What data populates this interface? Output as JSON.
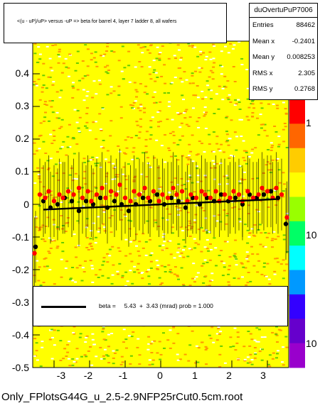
{
  "chart_data": {
    "type": "scatter",
    "title": "<(u - uP)/uP> versus -uP => beta for barrel 4, layer 7 ladder 8, all wafers",
    "xlim": [
      -3.6,
      3.6
    ],
    "ylim": [
      -0.5,
      0.5
    ],
    "x_ticks": [
      "-3",
      "-2",
      "-1",
      "0",
      "1",
      "2",
      "3"
    ],
    "y_ticks": [
      "0.4",
      "0.3",
      "0.2",
      "0.1",
      "0",
      "-0.1",
      "-0.2",
      "-0.3",
      "-0.4",
      "-0.5"
    ],
    "z_ticks": [
      "1",
      "10",
      "10"
    ],
    "colorbar": true,
    "log_z": true,
    "series": [
      {
        "marker": "black",
        "x": [
          -3.52,
          -3.3,
          -3.1,
          -2.9,
          -2.7,
          -2.5,
          -2.3,
          -2.1,
          -1.9,
          -1.7,
          -1.5,
          -1.3,
          -1.1,
          -0.9,
          -0.7,
          -0.5,
          -0.3,
          -0.1,
          0.1,
          0.3,
          0.5,
          0.7,
          0.9,
          1.1,
          1.3,
          1.5,
          1.7,
          1.9,
          2.1,
          2.3,
          2.5,
          2.7,
          2.9,
          3.1,
          3.3,
          3.52
        ],
        "y": [
          -0.13,
          0.01,
          -0.01,
          0.0,
          0.02,
          0.01,
          -0.02,
          0.01,
          0.0,
          0.02,
          -0.01,
          0.01,
          0.0,
          -0.02,
          0.0,
          0.02,
          0.01,
          0.03,
          0.0,
          0.02,
          0.01,
          -0.01,
          0.02,
          0.0,
          0.02,
          0.01,
          0.03,
          0.01,
          0.02,
          0.0,
          0.03,
          0.02,
          0.03,
          0.04,
          0.02,
          -0.06
        ]
      },
      {
        "marker": "red",
        "x": [
          -3.55,
          -3.4,
          -3.25,
          -3.15,
          -3.0,
          -2.85,
          -2.75,
          -2.6,
          -2.45,
          -2.3,
          -2.2,
          -2.05,
          -1.95,
          -1.8,
          -1.65,
          -1.55,
          -1.4,
          -1.25,
          -1.15,
          -1.0,
          -0.85,
          -0.75,
          -0.6,
          -0.45,
          -0.35,
          -0.2,
          -0.05,
          0.05,
          0.2,
          0.35,
          0.45,
          0.6,
          0.75,
          0.85,
          1.0,
          1.15,
          1.25,
          1.4,
          1.55,
          1.65,
          1.8,
          1.95,
          2.05,
          2.2,
          2.3,
          2.45,
          2.6,
          2.75,
          2.85,
          3.0,
          3.15,
          3.25,
          3.4,
          3.55
        ],
        "y": [
          -0.15,
          0.03,
          0.02,
          0.04,
          0.01,
          0.03,
          0.02,
          0.04,
          0.03,
          0.05,
          0.02,
          0.04,
          0.01,
          0.03,
          0.05,
          0.02,
          0.04,
          0.03,
          0.06,
          0.02,
          0.01,
          0.04,
          0.03,
          0.05,
          0.02,
          0.04,
          0.01,
          0.03,
          0.02,
          0.05,
          0.03,
          0.04,
          0.01,
          0.03,
          0.02,
          0.04,
          0.03,
          0.02,
          0.04,
          0.01,
          0.03,
          0.02,
          0.04,
          0.03,
          0.01,
          0.04,
          0.02,
          0.03,
          0.05,
          0.04,
          0.02,
          0.05,
          0.03,
          -0.04
        ]
      }
    ],
    "fit_line": {
      "slope": 0.0049,
      "intercept": 0.0
    }
  },
  "stats": {
    "name": "duOvertuPuP7006",
    "rows": [
      {
        "label": "Entries",
        "value": "88462"
      },
      {
        "label": "Mean x",
        "value": "-0.2401"
      },
      {
        "label": "Mean y",
        "value": "0.008253"
      },
      {
        "label": "RMS x",
        "value": "2.305"
      },
      {
        "label": "RMS y",
        "value": "0.2768"
      }
    ]
  },
  "fit_legend": "beta =     5.43  +  3.43 (mrad) prob = 1.000",
  "file_label": "Only_FPlotsG44G_u_2.5-2.9NFP25rCut0.5cm.root",
  "colors": {
    "plot_bg": "#ffff00",
    "speckle": "#ff9900",
    "marker_red": "#ff0000",
    "marker_black": "#000000"
  }
}
